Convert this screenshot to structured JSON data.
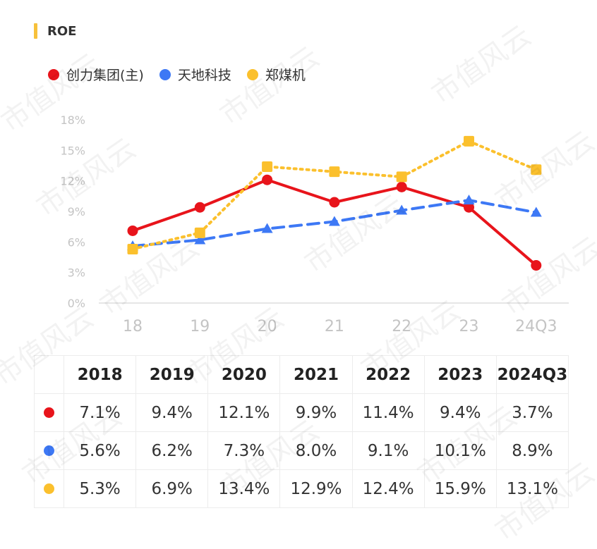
{
  "header": {
    "title": "ROE"
  },
  "watermark_text": "市值风云",
  "chart_data": {
    "type": "line",
    "title": "ROE",
    "categories": [
      "18",
      "19",
      "20",
      "21",
      "22",
      "23",
      "24Q3"
    ],
    "y_ticks": [
      "18%",
      "15%",
      "12%",
      "9%",
      "6%",
      "3%",
      "0%"
    ],
    "ylim": [
      0,
      18
    ],
    "grid": false,
    "legend": "top-left",
    "series": [
      {
        "name": "创力集团(主)",
        "color": "#e8141b",
        "marker": "circle",
        "style": "solid",
        "values": [
          7.1,
          9.4,
          12.1,
          9.9,
          11.4,
          9.4,
          3.7
        ]
      },
      {
        "name": "天地科技",
        "color": "#3d78f5",
        "marker": "triangle",
        "style": "dashed",
        "values": [
          5.6,
          6.2,
          7.3,
          8.0,
          9.1,
          10.1,
          8.9
        ]
      },
      {
        "name": "郑煤机",
        "color": "#fbc02d",
        "marker": "square",
        "style": "dotted",
        "values": [
          5.3,
          6.9,
          13.4,
          12.9,
          12.4,
          15.9,
          13.1
        ]
      }
    ]
  },
  "table": {
    "headers": [
      "2018",
      "2019",
      "2020",
      "2021",
      "2022",
      "2023",
      "2024Q3"
    ],
    "rows": [
      {
        "color": "#e8141b",
        "cells": [
          "7.1%",
          "9.4%",
          "12.1%",
          "9.9%",
          "11.4%",
          "9.4%",
          "3.7%"
        ]
      },
      {
        "color": "#3d78f5",
        "cells": [
          "5.6%",
          "6.2%",
          "7.3%",
          "8.0%",
          "9.1%",
          "10.1%",
          "8.9%"
        ]
      },
      {
        "color": "#fbc02d",
        "cells": [
          "5.3%",
          "6.9%",
          "13.4%",
          "12.9%",
          "12.4%",
          "15.9%",
          "13.1%"
        ]
      }
    ]
  }
}
